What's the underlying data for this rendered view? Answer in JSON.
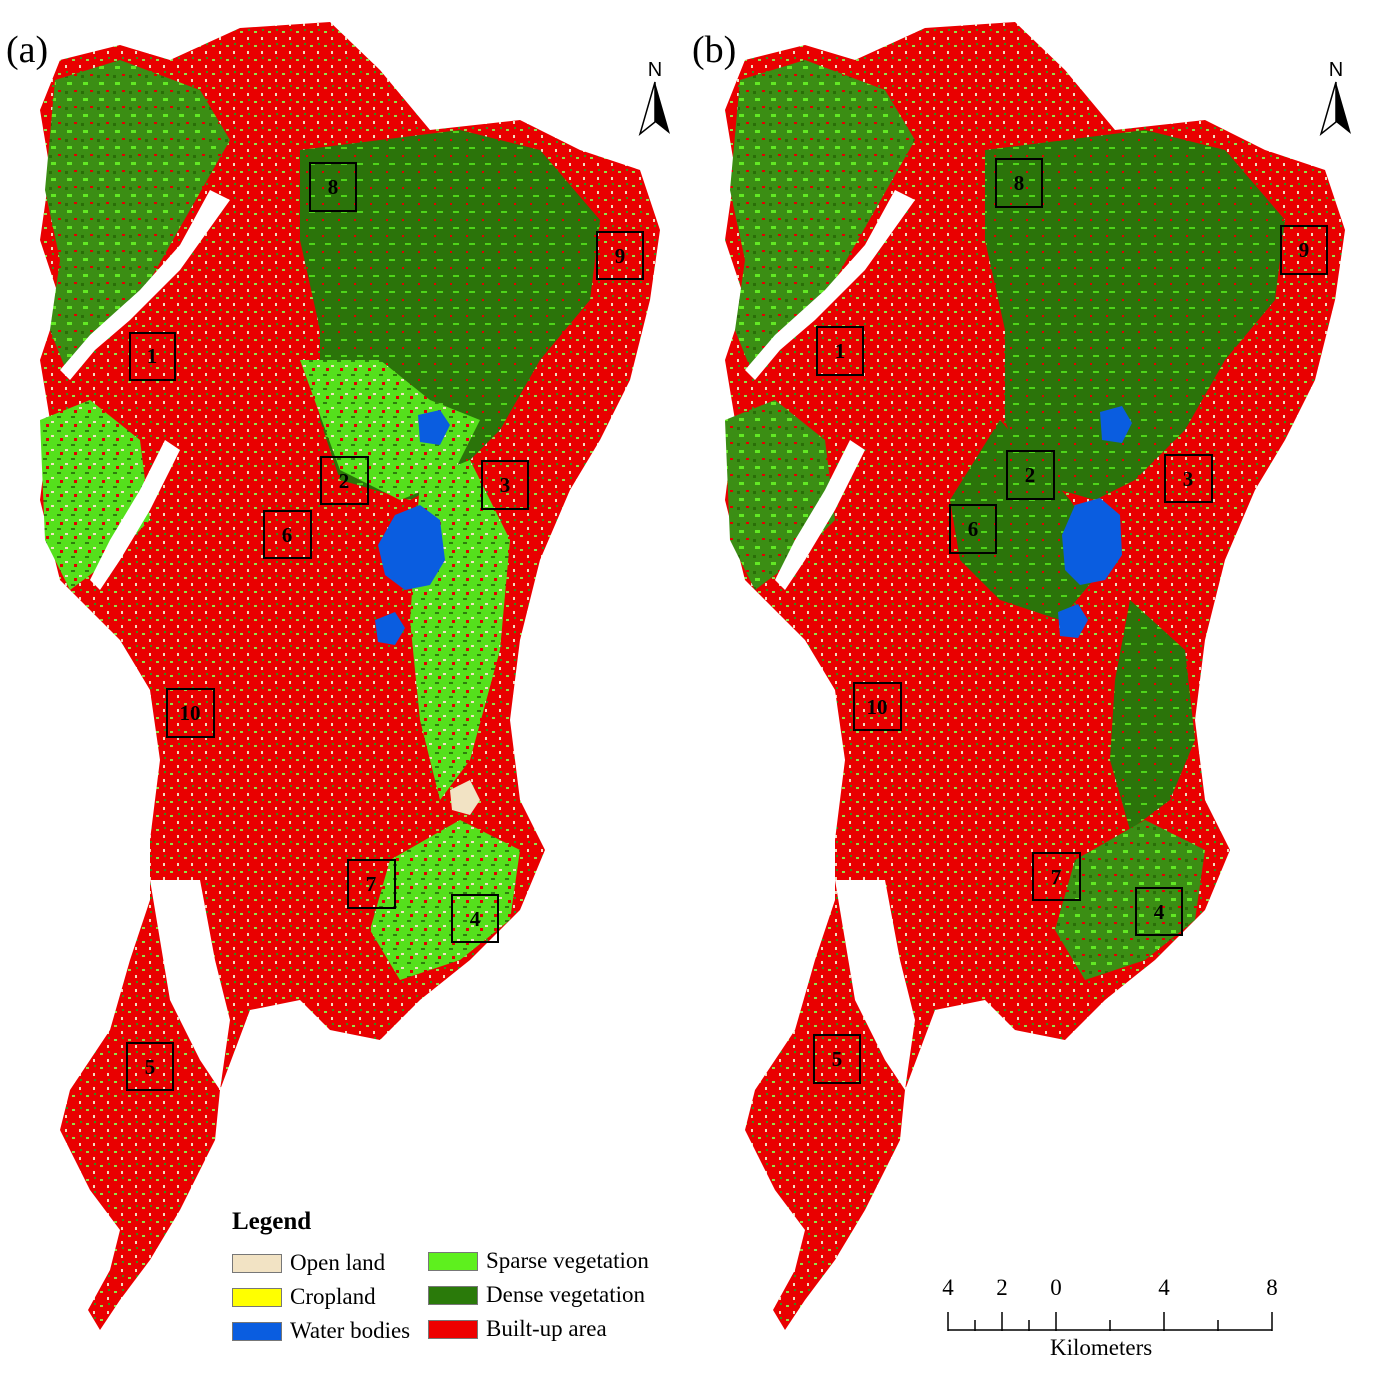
{
  "panels": [
    {
      "label": "(a)",
      "north": "N"
    },
    {
      "label": "(b)",
      "north": "N"
    }
  ],
  "study_boxes_a": [
    "1",
    "2",
    "3",
    "4",
    "5",
    "6",
    "7",
    "8",
    "9",
    "10"
  ],
  "study_boxes_b": [
    "1",
    "2",
    "3",
    "4",
    "5",
    "6",
    "7",
    "8",
    "9",
    "10"
  ],
  "legend": {
    "title": "Legend",
    "items": [
      {
        "label": "Open land",
        "color": "#f2e3c4"
      },
      {
        "label": "Cropland",
        "color": "#ffff00"
      },
      {
        "label": "Water bodies",
        "color": "#0a5de0"
      },
      {
        "label": "Sparse vegetation",
        "color": "#5ef01e"
      },
      {
        "label": "Dense vegetation",
        "color": "#2a7a0a"
      },
      {
        "label": "Built-up area",
        "color": "#ee0000"
      }
    ]
  },
  "scale_bar": {
    "tick_labels": [
      "4",
      "2",
      "0",
      "4",
      "8"
    ],
    "unit": "Kilometers"
  }
}
